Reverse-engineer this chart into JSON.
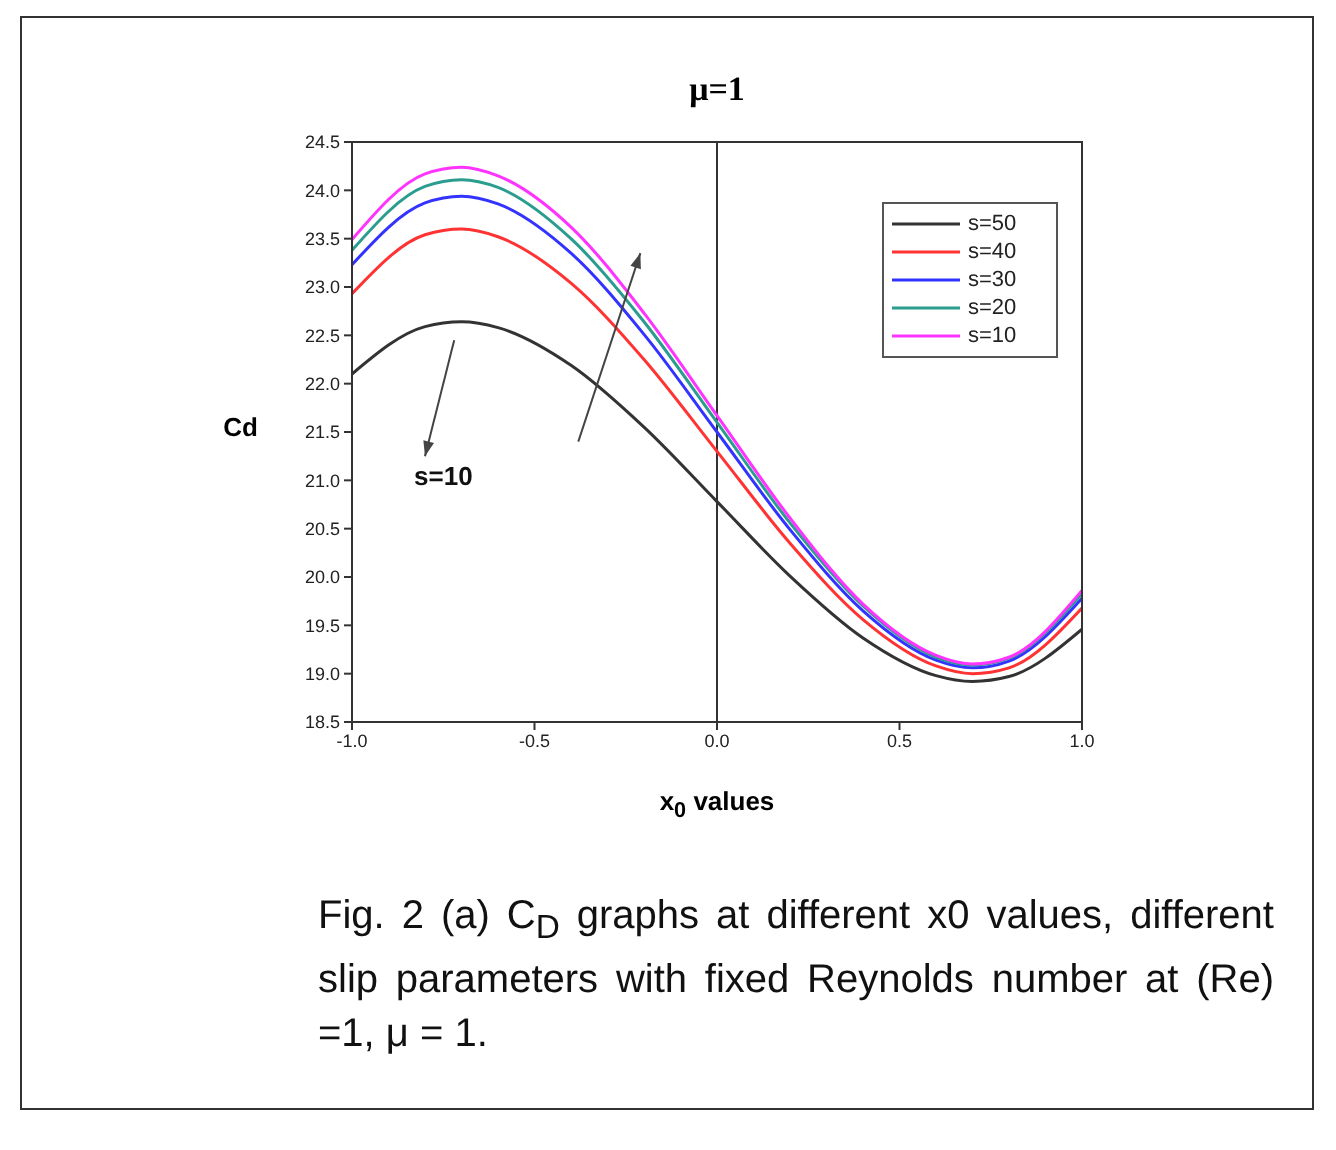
{
  "chart_data": {
    "type": "line",
    "title": "μ=1",
    "xlabel": "x$_{0}$ values",
    "ylabel": "Cd",
    "x": [
      -1,
      -0.8,
      -0.7,
      -0.6,
      -0.4,
      -0.2,
      0,
      0.2,
      0.4,
      0.6,
      0.7,
      0.8,
      1
    ],
    "series": [
      {
        "name": "s=50",
        "color": "#333333",
        "values": [
          22.1,
          22.59,
          22.64,
          22.58,
          22.19,
          21.55,
          20.78,
          20.01,
          19.37,
          18.98,
          18.92,
          18.97,
          19.46
        ]
      },
      {
        "name": "s=40",
        "color": "#ff3333",
        "values": [
          22.93,
          23.54,
          23.6,
          23.52,
          23.04,
          22.25,
          21.3,
          20.35,
          19.56,
          19.08,
          19.0,
          19.06,
          19.68
        ]
      },
      {
        "name": "s=30",
        "color": "#3333ff",
        "values": [
          23.23,
          23.87,
          23.94,
          23.86,
          23.35,
          22.51,
          21.5,
          20.49,
          19.65,
          19.14,
          19.06,
          19.13,
          19.78
        ]
      },
      {
        "name": "s=20",
        "color": "#2a9d8f",
        "values": [
          23.38,
          24.04,
          24.11,
          24.03,
          23.5,
          22.64,
          21.6,
          20.56,
          19.7,
          19.17,
          19.09,
          19.16,
          19.83
        ]
      },
      {
        "name": "s=10",
        "color": "#ff33ff",
        "values": [
          23.49,
          24.17,
          24.24,
          24.15,
          23.62,
          22.73,
          21.67,
          20.61,
          19.72,
          19.19,
          19.1,
          19.17,
          19.86
        ]
      }
    ],
    "xlim": [
      -1,
      1
    ],
    "xticks": [
      {
        "value": -1,
        "label": "-1.0"
      },
      {
        "value": -0.5,
        "label": "-0.5"
      },
      {
        "value": 0,
        "label": "0.0"
      },
      {
        "value": 0.5,
        "label": "0.5"
      },
      {
        "value": 1,
        "label": "1.0"
      }
    ],
    "ylim": [
      18.5,
      24.5
    ],
    "yticks": [
      {
        "value": 18.5,
        "label": "18.5"
      },
      {
        "value": 19,
        "label": "19.0"
      },
      {
        "value": 19.5,
        "label": "19.5"
      },
      {
        "value": 20,
        "label": "20.0"
      },
      {
        "value": 20.5,
        "label": "20.5"
      },
      {
        "value": 21,
        "label": "21.0"
      },
      {
        "value": 21.5,
        "label": "21.5"
      },
      {
        "value": 22,
        "label": "22.0"
      },
      {
        "value": 22.5,
        "label": "22.5"
      },
      {
        "value": 23,
        "label": "23.0"
      },
      {
        "value": 23.5,
        "label": "23.5"
      },
      {
        "value": 24,
        "label": "24.0"
      },
      {
        "value": 24.5,
        "label": "24.5"
      }
    ],
    "ref_lines": [
      {
        "axis": "x",
        "value": 0,
        "color": "#333333"
      }
    ],
    "annotations": [
      "s=10",
      "Fig. 2 (a)  C$_{D}$ graphs at different x0 values, different slip parameters with fixed Reynolds number at (Re) =1,  μ = 1."
    ],
    "legend": "top right",
    "grid": false,
    "marker": "none",
    "line_style": "solid"
  }
}
